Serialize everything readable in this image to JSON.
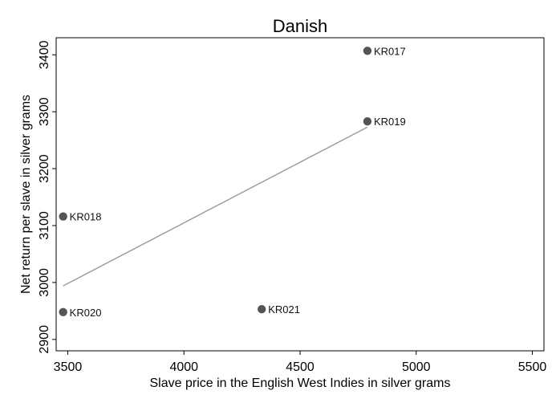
{
  "chart_data": {
    "type": "scatter",
    "title": "Danish",
    "xlabel": "Slave price in the English West Indies in silver grams",
    "ylabel": "Net return per slave in silver grams",
    "xlim": [
      3450,
      5550
    ],
    "ylim": [
      2880,
      3430
    ],
    "x_ticks": [
      3500,
      4000,
      4500,
      5000,
      5500
    ],
    "y_ticks": [
      2900,
      3000,
      3100,
      3200,
      3300,
      3400
    ],
    "points": [
      {
        "label": "KR017",
        "x": 4790,
        "y": 3407
      },
      {
        "label": "KR019",
        "x": 4790,
        "y": 3283
      },
      {
        "label": "KR018",
        "x": 3480,
        "y": 3116
      },
      {
        "label": "KR020",
        "x": 3480,
        "y": 2948
      },
      {
        "label": "KR021",
        "x": 4335,
        "y": 2953
      }
    ],
    "fit_line": {
      "x": [
        3480,
        4790
      ],
      "y": [
        2994,
        3273
      ]
    },
    "grid": false,
    "legend": "none",
    "colors": {
      "point": "#555555",
      "fit_line": "#9a9a9a",
      "axis": "#000000"
    }
  }
}
